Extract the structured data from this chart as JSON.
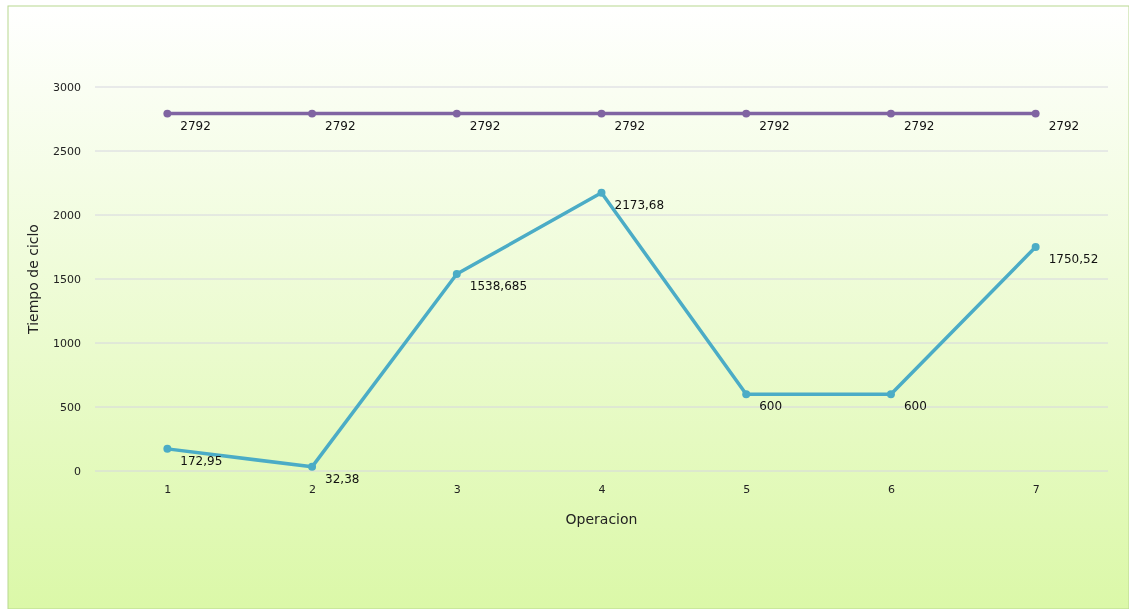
{
  "chart_data": {
    "type": "line",
    "xlabel": "Operacion",
    "ylabel": "Tiempo de ciclo",
    "categories": [
      "1",
      "2",
      "3",
      "4",
      "5",
      "6",
      "7"
    ],
    "series": [
      {
        "color": "#8064a2",
        "values": [
          2792,
          2792,
          2792,
          2792,
          2792,
          2792,
          2792
        ],
        "value_labels": [
          "2792",
          "2792",
          "2792",
          "2792",
          "2792",
          "2792",
          "2792"
        ]
      },
      {
        "color": "#4bacc6",
        "values": [
          172.95,
          32.38,
          1538.685,
          2173.68,
          600,
          600,
          1750.52
        ],
        "value_labels": [
          "172,95",
          "32,38",
          "1538,685",
          "2173,68",
          "600",
          "600",
          "1750,52"
        ]
      }
    ],
    "ylim": [
      0,
      3000
    ],
    "yticks": [
      0,
      500,
      1000,
      1500,
      2000,
      2500,
      3000
    ],
    "grid": "y",
    "marker": "circle",
    "line_style": "solid"
  }
}
